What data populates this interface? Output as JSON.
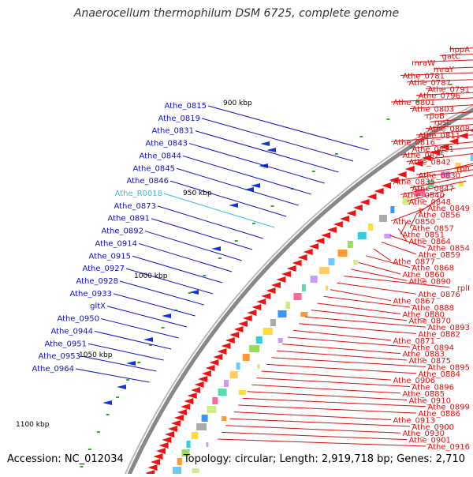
{
  "title": "Anaerocellum thermophilum DSM 6725, complete genome",
  "accession_text": "Accession: NC_012034",
  "topology_text": "Topology: circular; Length: 2,919,718 bp; Genes: 2,710",
  "colors": {
    "backbone": "#888888",
    "forward_arrows": "#ee1111",
    "reverse_arrows": "#1133dd",
    "right_labels": "#dd1111",
    "left_labels": "#1111cc",
    "rna_label": "#33bbee",
    "tick_dot": "#33aa33"
  },
  "kbp_ticks": [
    {
      "label": "900 kbp"
    },
    {
      "label": "950 kbp"
    },
    {
      "label": "1000 kbp"
    },
    {
      "label": "1050 kbp"
    },
    {
      "label": "1100 kbp"
    }
  ],
  "right_labels": [
    "hppA",
    "gatC",
    "mraW",
    "mraY",
    "Athe_0781",
    "Athe_0787",
    "Athe_0791",
    "Athe_0796",
    "Athe_0801",
    "Athe_0803",
    "rpoB",
    "rpsL",
    "Athe_0808",
    "Athe_0811",
    "Athe_0816",
    "Athe_0821",
    "Athe_0825",
    "Athe_0842",
    "rph",
    "Athe_0830",
    "Athe_0835",
    "Athe_0847",
    "Athe_0840",
    "Athe_0848",
    "Athe_0849",
    "Athe_0856",
    "Athe_0850",
    "Athe_0857",
    "Athe_0851",
    "Athe_0864",
    "Athe_0854",
    "Athe_0859",
    "Athe_0877",
    "Athe_0868",
    "Athe_0860",
    "Athe_0890",
    "rplI",
    "Athe_0876",
    "Athe_0867",
    "Athe_0888",
    "Athe_0880",
    "Athe_0870",
    "Athe_0893",
    "Athe_0882",
    "Athe_0871",
    "Athe_0894",
    "Athe_0883",
    "Athe_0875",
    "Athe_0895",
    "Athe_0884",
    "Athe_0906",
    "Athe_0896",
    "Athe_0885",
    "Athe_0910",
    "Athe_0899",
    "Athe_0886",
    "Athe_0913",
    "Athe_0900",
    "Athe_0930",
    "Athe_0901",
    "Athe_0916"
  ],
  "left_labels": [
    "Athe_0815",
    "Athe_0819",
    "Athe_0831",
    "Athe_0843",
    "Athe_0844",
    "Athe_0845",
    "Athe_0846",
    "Athe_R0018",
    "Athe_0873",
    "Athe_0891",
    "Athe_0892",
    "Athe_0914",
    "Athe_0915",
    "Athe_0927",
    "Athe_0928",
    "Athe_0933",
    "gltX",
    "Athe_0950",
    "Athe_0944",
    "Athe_0951",
    "Athe_0953",
    "Athe_0964"
  ]
}
